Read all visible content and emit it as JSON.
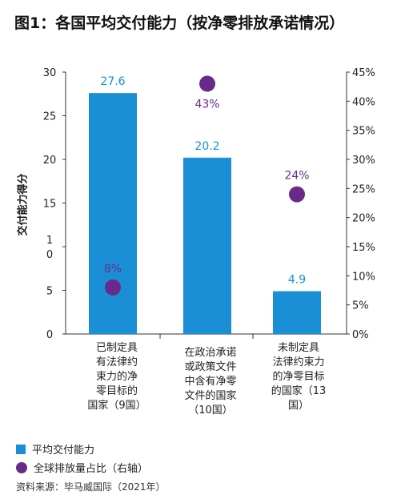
{
  "title": "图1：各国平均交付能力（按净零排放承诺情况）",
  "colors": {
    "bar": "#1a8fd6",
    "dot": "#6a2a8a",
    "bar_label": "#1a8fd6",
    "dot_label": "#6a2a8a"
  },
  "chart_data": {
    "type": "bar",
    "ylabel": "交付能力得分",
    "ylim": [
      0,
      30
    ],
    "y2lim": [
      0,
      45
    ],
    "categories": [
      [
        "已制定具",
        "有法律约",
        "束力的净",
        "零目标的",
        "国家（9国）"
      ],
      [
        "在政治承诺",
        "或政策文件",
        "中含有净零",
        "文件的国家",
        "（10国）"
      ],
      [
        "未制定具",
        "法律约束力",
        "的净零目标",
        "的国家（13",
        "国）"
      ]
    ],
    "series": [
      {
        "name": "平均交付能力",
        "axis": "left",
        "values": [
          27.6,
          20.2,
          4.9
        ],
        "labels": [
          "27.6",
          "20.2",
          "4.9"
        ]
      },
      {
        "name": "全球排放量占比（右轴）",
        "axis": "right",
        "values": [
          8,
          43,
          24
        ],
        "labels": [
          "8%",
          "43%",
          "24%"
        ]
      }
    ],
    "left_ticks": [
      "0",
      "5",
      "1\n0",
      "15",
      "20",
      "25",
      "30"
    ],
    "right_ticks": [
      "0%",
      "5%",
      "10%",
      "15%",
      "20%",
      "25%",
      "30%",
      "35%",
      "40%",
      "45%"
    ]
  },
  "source": "资料来源：毕马威国际（2021年）"
}
